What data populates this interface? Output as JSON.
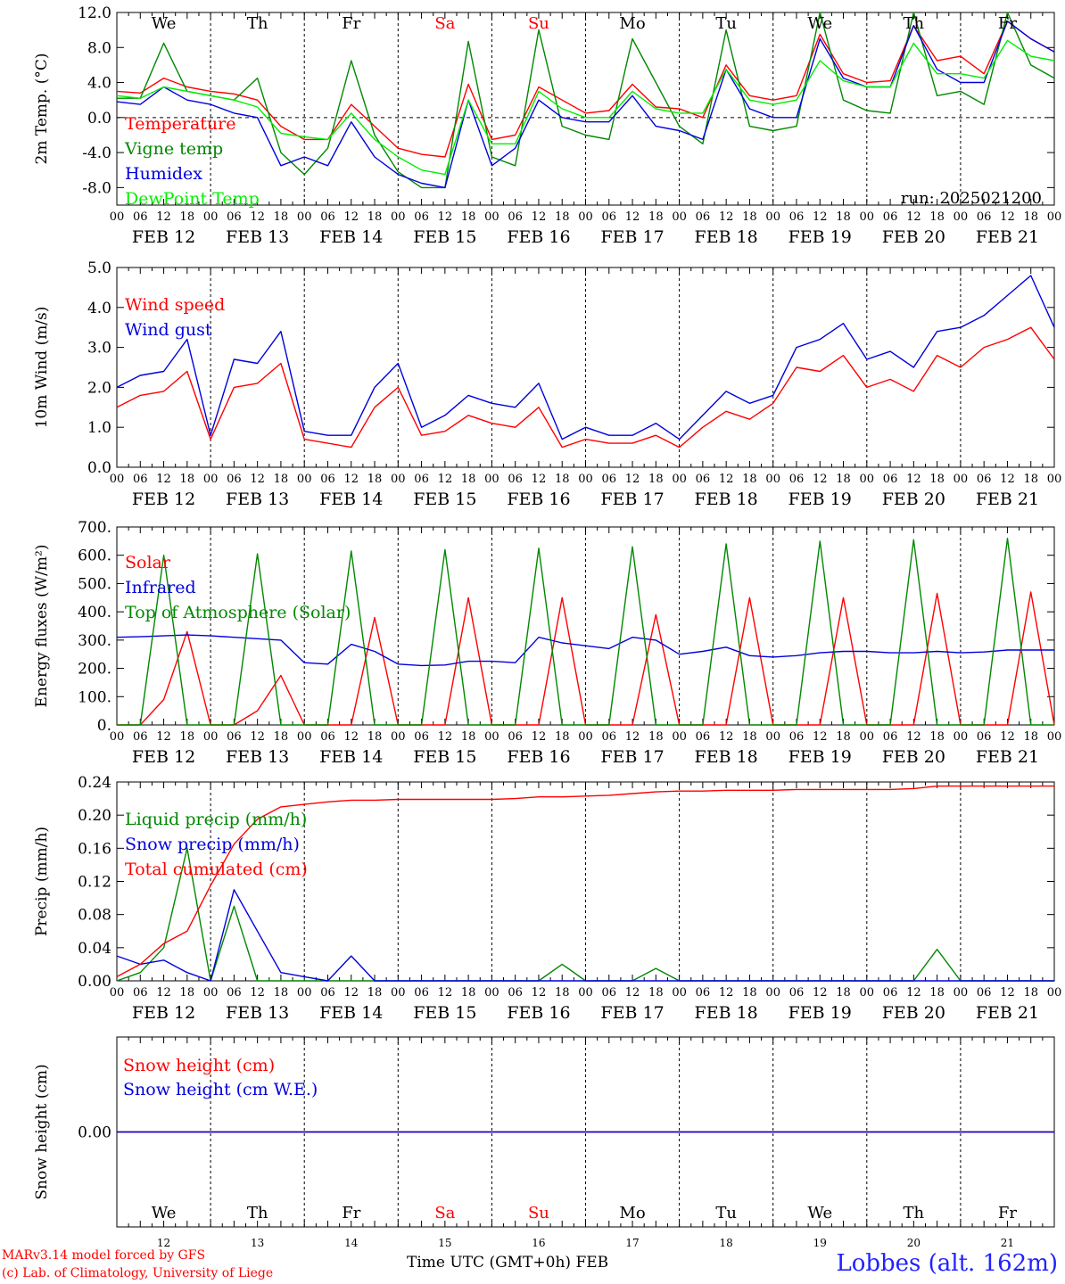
{
  "run_label": "run: 2025021200",
  "station_label": "Lobbes (alt. 162m)",
  "credits": [
    "MARv3.14 model forced by GFS",
    "(c) Lab. of Climatology, University of Liege"
  ],
  "time_caption": "Time UTC (GMT+0h) FEB",
  "hour_ticks": [
    "00",
    "06",
    "12",
    "18"
  ],
  "date_labels": [
    "FEB 12",
    "FEB 13",
    "FEB 14",
    "FEB 15",
    "FEB 16",
    "FEB 17",
    "FEB 18",
    "FEB 19",
    "FEB 20",
    "FEB 21"
  ],
  "day_names": [
    "We",
    "Th",
    "Fr",
    "Sa",
    "Su",
    "Mo",
    "Tu",
    "We",
    "Th",
    "Fr"
  ],
  "day_numbers": [
    "12",
    "13",
    "14",
    "15",
    "16",
    "17",
    "18",
    "19",
    "20",
    "21"
  ],
  "weekend_color": "#ff0000",
  "colors": {
    "red": "#ff0000",
    "green": "#008800",
    "blue": "#0000dd",
    "lightgreen": "#00ee00"
  },
  "chart_data": [
    {
      "type": "line",
      "ylabel": "2m Temp. (°C)",
      "ylim": [
        -10,
        12
      ],
      "yticks": [
        12,
        8,
        4,
        0,
        -4,
        -8
      ],
      "ytick_labels": [
        "12.0",
        "8.0",
        "4.0",
        "0.0",
        "-4.0",
        "-8.0"
      ],
      "hours": [
        0,
        6,
        12,
        18,
        24,
        30,
        36,
        42,
        48,
        54,
        60,
        66,
        72,
        78,
        84,
        90,
        96,
        102,
        108,
        114,
        120,
        126,
        132,
        138,
        144,
        150,
        156,
        162,
        168,
        174,
        180,
        186,
        192,
        198,
        204,
        210,
        216,
        222,
        228,
        234,
        240
      ],
      "series": [
        {
          "name": "Temperature",
          "color": "#ff0000",
          "values": [
            3,
            2.8,
            4.5,
            3.5,
            3,
            2.7,
            2,
            -1,
            -2.5,
            -2.5,
            1.5,
            -1,
            -3.5,
            -4.2,
            -4.5,
            3.8,
            -2.5,
            -2,
            3.5,
            2,
            0.5,
            0.8,
            3.8,
            1.2,
            1,
            0,
            6,
            2.5,
            2,
            2.5,
            9.5,
            5,
            4,
            4.2,
            10.5,
            6.5,
            7,
            5,
            11,
            9,
            7.5
          ]
        },
        {
          "name": "Vigne temp",
          "color": "#008800",
          "values": [
            2.2,
            2.2,
            8.5,
            3,
            2.5,
            2,
            4.5,
            -4,
            -6.5,
            -3.5,
            6.5,
            -2,
            -6.2,
            -8,
            -8,
            8.7,
            -4.5,
            -5.5,
            10,
            -1,
            -2,
            -2.5,
            9,
            4,
            -1,
            -3,
            10,
            -1,
            -1.5,
            -1,
            12,
            2,
            0.8,
            0.5,
            12,
            2.5,
            3,
            1.5,
            12,
            6,
            4.5
          ]
        },
        {
          "name": "Humidex",
          "color": "#0000dd",
          "values": [
            1.8,
            1.5,
            3.5,
            2,
            1.5,
            0.5,
            0,
            -5.5,
            -4.5,
            -5.5,
            -0.5,
            -4.5,
            -6.5,
            -7.5,
            -8,
            2,
            -5.5,
            -3.5,
            2,
            0,
            -0.5,
            -0.5,
            2.5,
            -1,
            -1.5,
            -2.5,
            5.5,
            1,
            0,
            0,
            9,
            4.5,
            3.5,
            3.5,
            10.5,
            5.5,
            4,
            4,
            11,
            9,
            7.5
          ]
        },
        {
          "name": "DewPoint Temp",
          "color": "#00ee00",
          "values": [
            2.5,
            2.2,
            3.5,
            3,
            2.5,
            2,
            1.2,
            -1.8,
            -2.2,
            -2.5,
            0.5,
            -2.5,
            -4.5,
            -6,
            -6.5,
            2,
            -3,
            -3,
            3,
            1,
            0,
            0,
            3,
            1,
            0.5,
            0.5,
            5.5,
            2,
            1.5,
            2,
            6.5,
            4.2,
            3.5,
            3.5,
            8.5,
            5,
            5,
            4.5,
            8.8,
            7,
            6.5
          ]
        }
      ]
    },
    {
      "type": "line",
      "ylabel": "10m Wind (m/s)",
      "ylim": [
        0,
        5
      ],
      "yticks": [
        5,
        4,
        3,
        2,
        1,
        0
      ],
      "ytick_labels": [
        "5.0",
        "4.0",
        "3.0",
        "2.0",
        "1.0",
        "0.0"
      ],
      "hours": [
        0,
        6,
        12,
        18,
        24,
        30,
        36,
        42,
        48,
        54,
        60,
        66,
        72,
        78,
        84,
        90,
        96,
        102,
        108,
        114,
        120,
        126,
        132,
        138,
        144,
        150,
        156,
        162,
        168,
        174,
        180,
        186,
        192,
        198,
        204,
        210,
        216,
        222,
        228,
        234,
        240
      ],
      "series": [
        {
          "name": "Wind speed",
          "color": "#ff0000",
          "values": [
            1.5,
            1.8,
            1.9,
            2.4,
            0.7,
            2,
            2.1,
            2.6,
            0.7,
            0.6,
            0.5,
            1.5,
            2,
            0.8,
            0.9,
            1.3,
            1.1,
            1,
            1.5,
            0.5,
            0.7,
            0.6,
            0.6,
            0.8,
            0.5,
            1,
            1.4,
            1.2,
            1.6,
            2.5,
            2.4,
            2.8,
            2,
            2.2,
            1.9,
            2.8,
            2.5,
            3,
            3.2,
            3.5,
            2.7
          ]
        },
        {
          "name": "Wind gust",
          "color": "#0000dd",
          "values": [
            2,
            2.3,
            2.4,
            3.2,
            0.8,
            2.7,
            2.6,
            3.4,
            0.9,
            0.8,
            0.8,
            2,
            2.6,
            1,
            1.3,
            1.8,
            1.6,
            1.5,
            2.1,
            0.7,
            1,
            0.8,
            0.8,
            1.1,
            0.7,
            1.3,
            1.9,
            1.6,
            1.8,
            3,
            3.2,
            3.6,
            2.7,
            2.9,
            2.5,
            3.4,
            3.5,
            3.8,
            4.3,
            4.8,
            3.5
          ]
        }
      ]
    },
    {
      "type": "line",
      "ylabel": "Energy fluxes (W/m²)",
      "ylim": [
        0,
        700
      ],
      "yticks": [
        700,
        600,
        500,
        400,
        300,
        200,
        100,
        0
      ],
      "ytick_labels": [
        "700.",
        "600.",
        "500.",
        "400.",
        "300.",
        "200.",
        "100.",
        "0."
      ],
      "hours": [
        0,
        6,
        12,
        18,
        24,
        30,
        36,
        42,
        48,
        54,
        60,
        66,
        72,
        78,
        84,
        90,
        96,
        102,
        108,
        114,
        120,
        126,
        132,
        138,
        144,
        150,
        156,
        162,
        168,
        174,
        180,
        186,
        192,
        198,
        204,
        210,
        216,
        222,
        228,
        234,
        240
      ],
      "series": [
        {
          "name": "Solar",
          "color": "#ff0000",
          "values": [
            0,
            0,
            90,
            330,
            0,
            0,
            50,
            175,
            0,
            0,
            0,
            380,
            0,
            0,
            0,
            450,
            0,
            0,
            0,
            450,
            0,
            0,
            0,
            390,
            0,
            0,
            0,
            450,
            0,
            0,
            0,
            450,
            0,
            0,
            0,
            465,
            0,
            0,
            0,
            470,
            0
          ]
        },
        {
          "name": "Infrared",
          "color": "#0000dd",
          "values": [
            310,
            312,
            315,
            318,
            315,
            310,
            305,
            300,
            220,
            215,
            285,
            260,
            215,
            210,
            212,
            225,
            225,
            220,
            310,
            290,
            280,
            270,
            310,
            300,
            250,
            260,
            275,
            245,
            240,
            245,
            255,
            260,
            260,
            255,
            255,
            260,
            255,
            258,
            265,
            265,
            265
          ]
        },
        {
          "name": "Top of Atmosphere (Solar)",
          "color": "#008800",
          "values": [
            0,
            0,
            600,
            0,
            0,
            0,
            605,
            0,
            0,
            0,
            615,
            0,
            0,
            0,
            620,
            0,
            0,
            0,
            625,
            0,
            0,
            0,
            630,
            0,
            0,
            0,
            640,
            0,
            0,
            0,
            650,
            0,
            0,
            0,
            655,
            0,
            0,
            0,
            660,
            0,
            0
          ]
        }
      ]
    },
    {
      "type": "line",
      "ylabel": "Precip (mm/h)",
      "ylim": [
        0,
        0.24
      ],
      "yticks": [
        0.24,
        0.2,
        0.16,
        0.12,
        0.08,
        0.04,
        0.0
      ],
      "ytick_labels": [
        "0.24",
        "0.20",
        "0.16",
        "0.12",
        "0.08",
        "0.04",
        "0.00"
      ],
      "hours": [
        0,
        6,
        12,
        18,
        24,
        30,
        36,
        42,
        48,
        54,
        60,
        66,
        72,
        78,
        84,
        90,
        96,
        102,
        108,
        114,
        120,
        126,
        132,
        138,
        144,
        150,
        156,
        162,
        168,
        174,
        180,
        186,
        192,
        198,
        204,
        210,
        216,
        222,
        228,
        234,
        240
      ],
      "series": [
        {
          "name": "Liquid precip (mm/h)",
          "color": "#008800",
          "values": [
            0,
            0.01,
            0.04,
            0.16,
            0,
            0.09,
            0,
            0,
            0,
            0,
            0,
            0,
            0,
            0,
            0,
            0,
            0,
            0,
            0,
            0.02,
            0,
            0,
            0,
            0.015,
            0,
            0,
            0,
            0,
            0,
            0,
            0,
            0,
            0,
            0,
            0,
            0.038,
            0,
            0,
            0,
            0,
            0
          ]
        },
        {
          "name": "Snow precip (mm/h)",
          "color": "#0000dd",
          "values": [
            0.03,
            0.02,
            0.025,
            0.01,
            0,
            0.11,
            0.06,
            0.01,
            0.005,
            0,
            0.03,
            0,
            0,
            0,
            0,
            0,
            0,
            0,
            0,
            0,
            0,
            0,
            0,
            0,
            0,
            0,
            0,
            0,
            0,
            0,
            0,
            0,
            0,
            0,
            0,
            0,
            0,
            0,
            0,
            0,
            0
          ]
        },
        {
          "name": "Total cumulated (cm)",
          "color": "#ff0000",
          "values": [
            0.005,
            0.02,
            0.045,
            0.06,
            0.115,
            0.165,
            0.195,
            0.21,
            0.213,
            0.216,
            0.218,
            0.218,
            0.219,
            0.219,
            0.219,
            0.219,
            0.219,
            0.22,
            0.222,
            0.222,
            0.223,
            0.224,
            0.226,
            0.228,
            0.229,
            0.229,
            0.23,
            0.23,
            0.23,
            0.231,
            0.231,
            0.231,
            0.231,
            0.231,
            0.232,
            0.235,
            0.235,
            0.235,
            0.235,
            0.235,
            0.235
          ]
        }
      ]
    },
    {
      "type": "line",
      "ylabel": "Snow height (cm)",
      "ylim": [
        -1,
        1
      ],
      "yticks": [
        0
      ],
      "ytick_labels": [
        "0.00"
      ],
      "hours": [
        0,
        240
      ],
      "series": [
        {
          "name": "Snow height (cm)",
          "color": "#ff0000",
          "values": [
            0,
            0
          ]
        },
        {
          "name": "Snow height (cm W.E.)",
          "color": "#0000dd",
          "values": [
            0,
            0
          ]
        }
      ]
    }
  ]
}
